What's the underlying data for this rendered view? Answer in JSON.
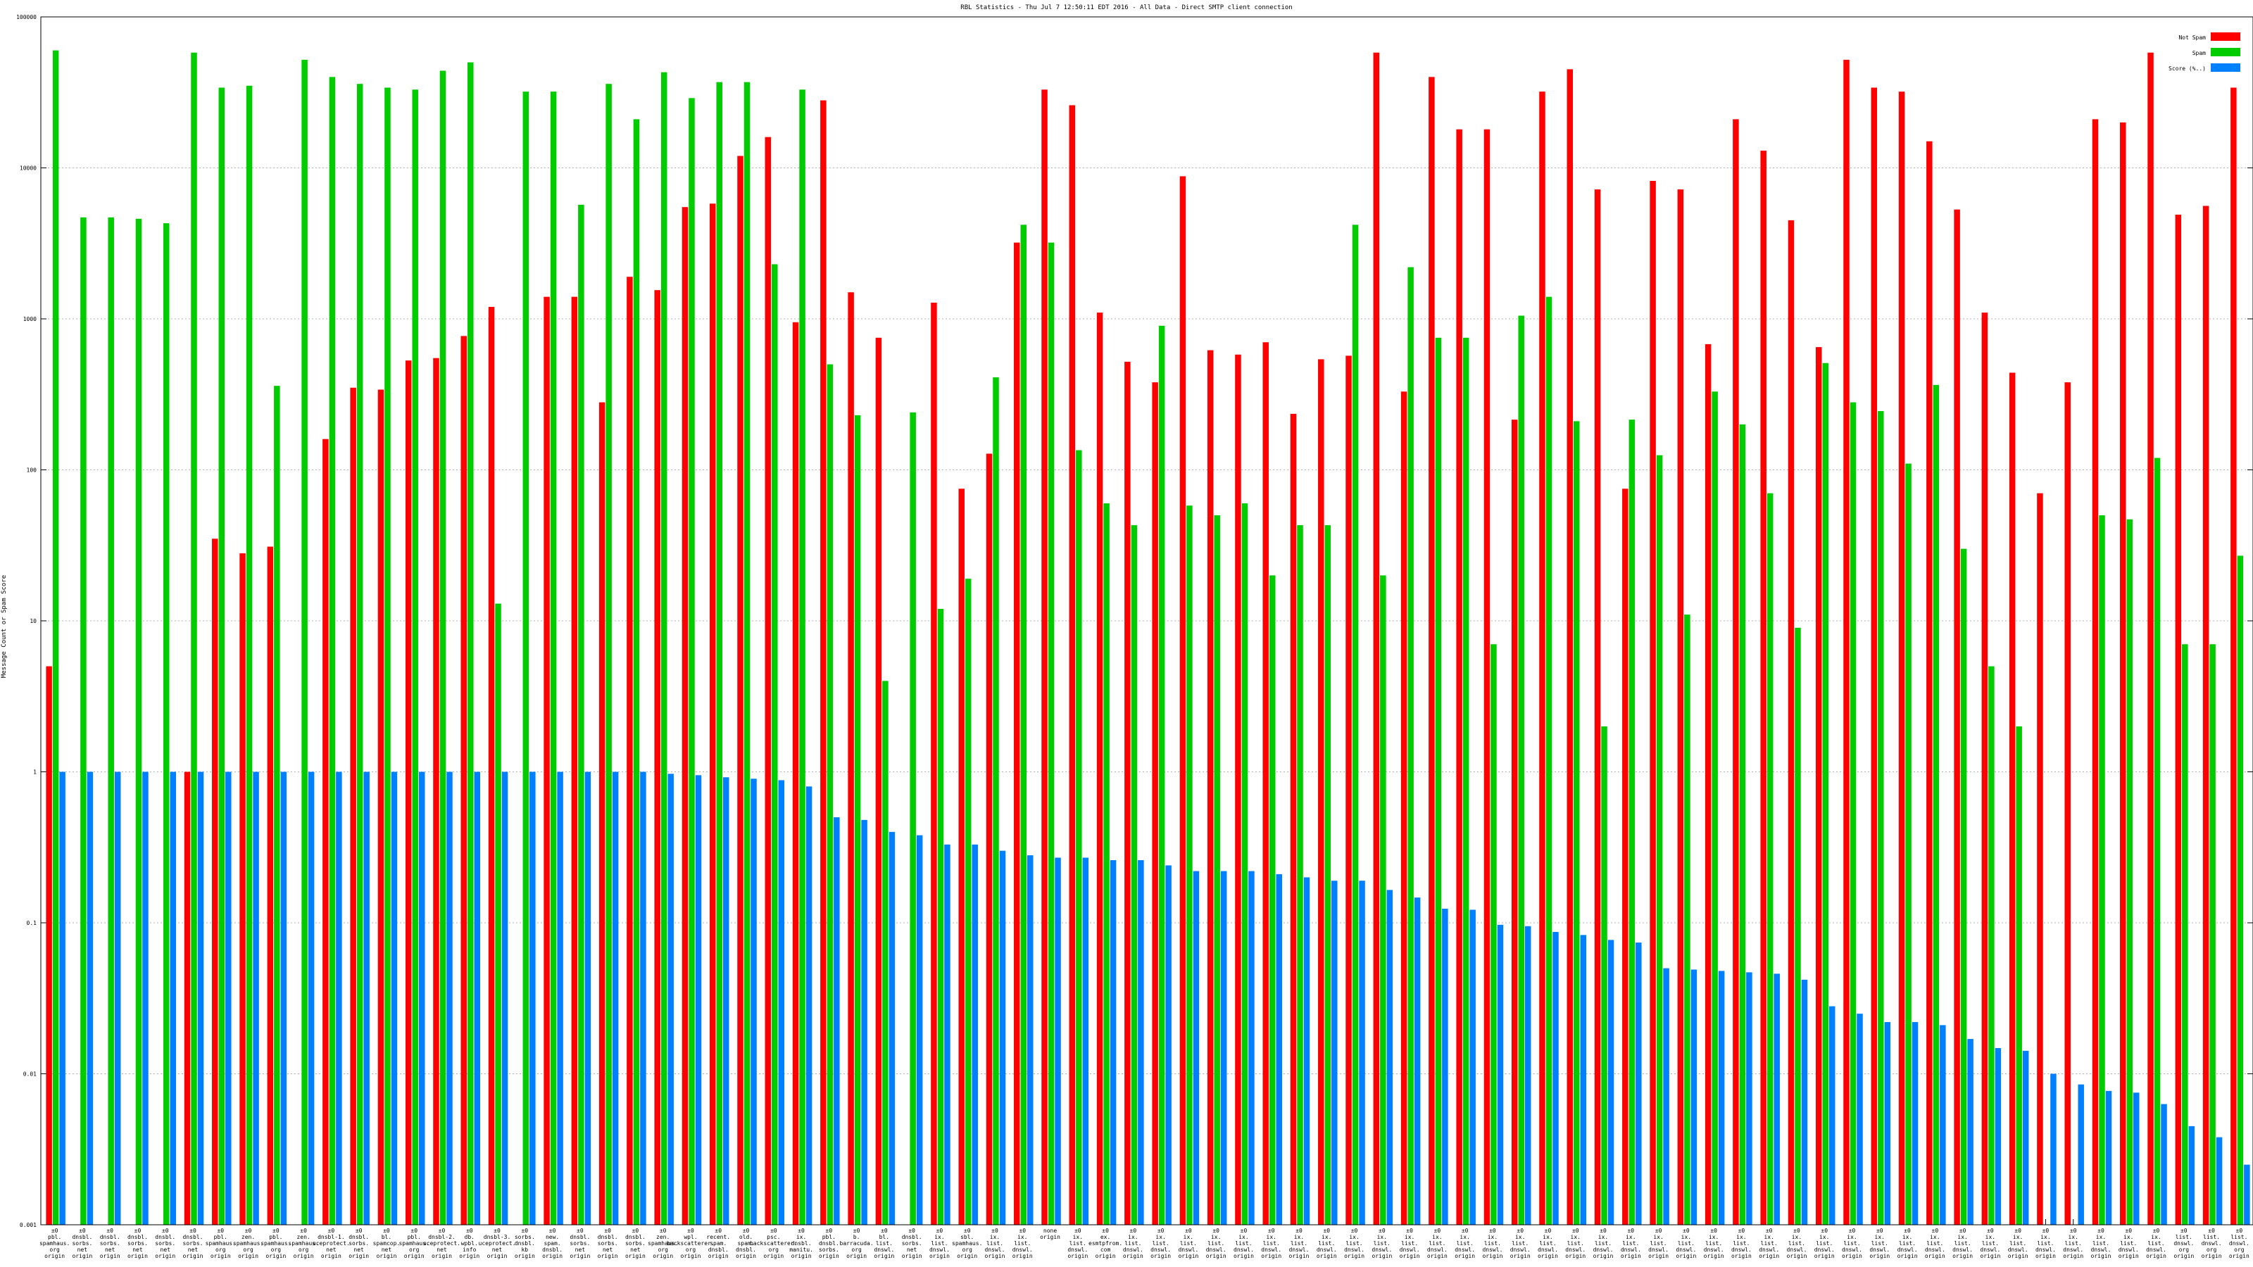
{
  "chart_data": {
    "type": "bar",
    "title": "RBL Statistics - Thu Jul  7 12:50:11 EDT 2016 - All Data - Direct SMTP client connection",
    "ylabel": "Message Count or Spam Score",
    "yscale": "log",
    "ylim": [
      0.001,
      100000
    ],
    "yticks": [
      "0.001",
      "0.01",
      "0.1",
      "1",
      "10",
      "100",
      "1000",
      "10000",
      "100000"
    ],
    "grid": true,
    "legend_position": "top-right",
    "series": [
      {
        "name": "Not Spam",
        "color": "#ff0000",
        "values": [
          5,
          null,
          null,
          null,
          null,
          1,
          35,
          28,
          31,
          null,
          160,
          350,
          340,
          530,
          550,
          770,
          1200,
          null,
          1400,
          1400,
          280,
          1900,
          1550,
          5500,
          5800,
          12000,
          16000,
          950,
          28000,
          1500,
          750,
          null,
          1280,
          75,
          128,
          3200,
          33000,
          26000,
          1100,
          520,
          380,
          8800,
          620,
          580,
          700,
          235,
          540,
          570,
          58000,
          330,
          40000,
          18000,
          18000,
          215,
          32000,
          45000,
          7200,
          75,
          8200,
          7200,
          680,
          21000,
          13000,
          4500,
          650,
          52000,
          34000,
          32000,
          15000,
          5300,
          1100,
          440,
          70,
          380,
          21000,
          20000,
          58000,
          4900,
          5600,
          34000
        ]
      },
      {
        "name": "Spam",
        "color": "#00cc00",
        "values": [
          60000,
          4700,
          4700,
          4600,
          4300,
          58000,
          34000,
          35000,
          360,
          52000,
          40000,
          36000,
          34000,
          33000,
          44000,
          50000,
          13,
          32000,
          32000,
          5700,
          36000,
          21000,
          43000,
          29000,
          37000,
          37000,
          2300,
          33000,
          500,
          230,
          4,
          240,
          12,
          19,
          410,
          4200,
          3200,
          135,
          60,
          43,
          900,
          58,
          50,
          60,
          20,
          43,
          43,
          4200,
          20,
          2200,
          750,
          750,
          7,
          1050,
          1400,
          210,
          2,
          215,
          125,
          11,
          330,
          200,
          70,
          9,
          510,
          280,
          245,
          110,
          365,
          30,
          5,
          2,
          null,
          null,
          50,
          47,
          120,
          7,
          7,
          27
        ]
      },
      {
        "name": "Score (%..)",
        "color": "#0080ff",
        "values": [
          1,
          1,
          1,
          1,
          1,
          1,
          1,
          1,
          1,
          1,
          1,
          1,
          1,
          1,
          1,
          1,
          1,
          1,
          1,
          1,
          1,
          1,
          0.97,
          0.95,
          0.92,
          0.9,
          0.88,
          0.8,
          0.5,
          0.48,
          0.4,
          0.38,
          0.33,
          0.33,
          0.3,
          0.28,
          0.27,
          0.27,
          0.26,
          0.26,
          0.24,
          0.22,
          0.22,
          0.22,
          0.21,
          0.2,
          0.19,
          0.19,
          0.165,
          0.147,
          0.124,
          0.122,
          0.097,
          0.095,
          0.087,
          0.083,
          0.077,
          0.074,
          0.05,
          0.049,
          0.048,
          0.047,
          0.046,
          0.042,
          0.028,
          0.025,
          0.022,
          0.022,
          0.021,
          0.017,
          0.0148,
          0.0142,
          0.01,
          0.0085,
          0.0077,
          0.0075,
          0.0063,
          0.0045,
          0.0038,
          0.0025
        ]
      }
    ],
    "categories": [
      [
        "±0",
        "pbl.",
        "spamhaus.",
        "org",
        "origin"
      ],
      [
        "±0",
        "dnsbl.",
        "sorbs.",
        "net",
        "origin"
      ],
      [
        "±0",
        "dnsbl.",
        "sorbs.",
        "net",
        "origin"
      ],
      [
        "±0",
        "dnsbl.",
        "sorbs.",
        "net",
        "origin"
      ],
      [
        "±0",
        "dnsbl.",
        "sorbs.",
        "net",
        "origin"
      ],
      [
        "±0",
        "dnsbl.",
        "sorbs.",
        "net",
        "origin"
      ],
      [
        "±0",
        "pbl.",
        "spamhaus.",
        "org",
        "origin"
      ],
      [
        "±0",
        "zen.",
        "spamhaus.",
        "org",
        "origin"
      ],
      [
        "±0",
        "pbl.",
        "spamhaus.",
        "org",
        "origin"
      ],
      [
        "±0",
        "zen.",
        "spamhaus.",
        "org",
        "origin"
      ],
      [
        "±0",
        "dnsbl-1.",
        "uceprotect.",
        "net",
        "origin"
      ],
      [
        "±0",
        "dnsbl.",
        "sorbs.",
        "net",
        "origin"
      ],
      [
        "±0",
        "bl.",
        "spamcop.",
        "net",
        "origin"
      ],
      [
        "±0",
        "pbl.",
        "spamhaus.",
        "org",
        "origin"
      ],
      [
        "±0",
        "dnsbl-2.",
        "uceprotect.",
        "net",
        "origin"
      ],
      [
        "±0",
        "db.",
        "wpbl.",
        "info",
        "origin"
      ],
      [
        "±0",
        "dnsbl-3.",
        "uceprotect.",
        "net",
        "origin"
      ],
      [
        "±0",
        "sorbs.",
        "dnsbl.",
        "kb",
        "origin"
      ],
      [
        "±0",
        "new.",
        "spam.",
        "dnsbl.",
        "origin"
      ],
      [
        "±0",
        "dnsbl.",
        "sorbs.",
        "net",
        "origin"
      ],
      [
        "±0",
        "dnsbl.",
        "sorbs.",
        "net",
        "origin"
      ],
      [
        "±0",
        "dnsbl.",
        "sorbs.",
        "net",
        "origin"
      ],
      [
        "±0",
        "zen.",
        "spamhaus.",
        "org",
        "origin"
      ],
      [
        "±0",
        "wpl.",
        "backscatterer.",
        "org",
        "origin"
      ],
      [
        "±0",
        "recent.",
        "spam.",
        "dnsbl.",
        "origin"
      ],
      [
        "±0",
        "old.",
        "spam.",
        "dnsbl.",
        "origin"
      ],
      [
        "±0",
        "psc.",
        "backscatterer.",
        "org",
        "origin"
      ],
      [
        "±0",
        "ix.",
        "dnsbl.",
        "manitu.",
        "origin"
      ],
      [
        "±0",
        "pbl.",
        "dnsbl.",
        "sorbs.",
        "origin"
      ],
      [
        "±0",
        "b.",
        "barracuda.",
        "org",
        "origin"
      ],
      [
        "±0",
        "bl.",
        "list.",
        "dnswl.",
        "origin"
      ],
      [
        "±0",
        "dnsbl.",
        "sorbs.",
        "net",
        "origin"
      ],
      [
        "±0",
        "ix.",
        "list.",
        "dnswl.",
        "origin"
      ],
      [
        "±0",
        "sbl.",
        "spamhaus.",
        "org",
        "origin"
      ],
      [
        "±0",
        "ix.",
        "list.",
        "dnswl.",
        "origin"
      ],
      [
        "±0",
        "ix.",
        "list.",
        "dnswl.",
        "origin"
      ],
      [
        "none",
        "origin"
      ],
      [
        "±0",
        "ix.",
        "list.",
        "dnswl.",
        "origin"
      ],
      [
        "±0",
        "ex.",
        "esmtpfrom.",
        "com",
        "origin"
      ],
      [
        "±0",
        "ix.",
        "list.",
        "dnswl.",
        "origin"
      ],
      [
        "±0",
        "ix.",
        "list.",
        "dnswl.",
        "origin"
      ],
      [
        "±0",
        "ix.",
        "list.",
        "dnswl.",
        "origin"
      ],
      [
        "±0",
        "ix.",
        "list.",
        "dnswl.",
        "origin"
      ],
      [
        "±0",
        "ix.",
        "list.",
        "dnswl.",
        "origin"
      ],
      [
        "±0",
        "ix.",
        "list.",
        "dnswl.",
        "origin"
      ],
      [
        "±0",
        "ix.",
        "list.",
        "dnswl.",
        "origin"
      ],
      [
        "±0",
        "ix.",
        "list.",
        "dnswl.",
        "origin"
      ],
      [
        "±0",
        "ix.",
        "list.",
        "dnswl.",
        "origin"
      ],
      [
        "±0",
        "ix.",
        "list.",
        "dnswl.",
        "origin"
      ],
      [
        "±0",
        "ix.",
        "list.",
        "dnswl.",
        "origin"
      ],
      [
        "±0",
        "ix.",
        "list.",
        "dnswl.",
        "origin"
      ],
      [
        "±0",
        "ix.",
        "list.",
        "dnswl.",
        "origin"
      ],
      [
        "±0",
        "ix.",
        "list.",
        "dnswl.",
        "origin"
      ],
      [
        "±0",
        "ix.",
        "list.",
        "dnswl.",
        "origin"
      ],
      [
        "±0",
        "ix.",
        "list.",
        "dnswl.",
        "origin"
      ],
      [
        "±0",
        "ix.",
        "list.",
        "dnswl.",
        "origin"
      ],
      [
        "±0",
        "ix.",
        "list.",
        "dnswl.",
        "origin"
      ],
      [
        "±0",
        "ix.",
        "list.",
        "dnswl.",
        "origin"
      ],
      [
        "±0",
        "ix.",
        "list.",
        "dnswl.",
        "origin"
      ],
      [
        "±0",
        "ix.",
        "list.",
        "dnswl.",
        "origin"
      ],
      [
        "±0",
        "ix.",
        "list.",
        "dnswl.",
        "origin"
      ],
      [
        "±0",
        "ix.",
        "list.",
        "dnswl.",
        "origin"
      ],
      [
        "±0",
        "ix.",
        "list.",
        "dnswl.",
        "origin"
      ],
      [
        "±0",
        "ix.",
        "list.",
        "dnswl.",
        "origin"
      ],
      [
        "±0",
        "ix.",
        "list.",
        "dnswl.",
        "origin"
      ],
      [
        "±0",
        "ix.",
        "list.",
        "dnswl.",
        "origin"
      ],
      [
        "±0",
        "ix.",
        "list.",
        "dnswl.",
        "origin"
      ],
      [
        "±0",
        "ix.",
        "list.",
        "dnswl.",
        "origin"
      ],
      [
        "±0",
        "ix.",
        "list.",
        "dnswl.",
        "origin"
      ],
      [
        "±0",
        "ix.",
        "list.",
        "dnswl.",
        "origin"
      ],
      [
        "±0",
        "ix.",
        "list.",
        "dnswl.",
        "origin"
      ],
      [
        "±0",
        "ix.",
        "list.",
        "dnswl.",
        "origin"
      ],
      [
        "±0",
        "ix.",
        "list.",
        "dnswl.",
        "origin"
      ],
      [
        "±0",
        "ix.",
        "list.",
        "dnswl.",
        "origin"
      ],
      [
        "±0",
        "ix.",
        "list.",
        "dnswl.",
        "origin"
      ],
      [
        "±0",
        "ix.",
        "list.",
        "dnswl.",
        "origin"
      ],
      [
        "±0",
        "ix.",
        "list.",
        "dnswl.",
        "origin"
      ],
      [
        "±0",
        "list.",
        "dnswl.",
        "org",
        "origin"
      ],
      [
        "±0",
        "list.",
        "dnswl.",
        "org",
        "origin"
      ],
      [
        "±0",
        "list.",
        "dnswl.",
        "org",
        "origin"
      ]
    ]
  }
}
